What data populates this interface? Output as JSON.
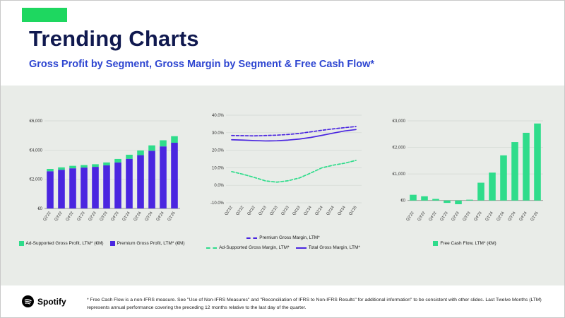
{
  "header": {
    "title": "Trending Charts",
    "subtitle": "Gross Profit by Segment, Gross Margin by Segment & Free Cash Flow*"
  },
  "colors": {
    "accent_green": "#1ed760",
    "chart_green": "#2fdc8b",
    "chart_purple": "#4a26e0",
    "title_navy": "#10194f",
    "subtitle_blue": "#2e46d1",
    "band_background": "#e9ece8"
  },
  "footer": {
    "brand": "Spotify",
    "disclaimer": "* Free Cash Flow is a non-IFRS measure. See \"Use of Non-IFRS Measures\" and \"Reconciliation of IFRS to Non-IFRS Results\" for additional information\" to be consistent with other slides. Last Twelve Months (LTM) represents annual performance covering the preceding 12 months relative to the last day of the quarter."
  },
  "chart_data": [
    {
      "type": "bar",
      "stacked": true,
      "categories": [
        "Q2'22",
        "Q3'22",
        "Q4'22",
        "Q1'23",
        "Q2'23",
        "Q3'23",
        "Q4'23",
        "Q1'24",
        "Q2'24",
        "Q3'24",
        "Q4'24",
        "Q1'25"
      ],
      "series": [
        {
          "name": "Premium Gross Profit, LTM* (€M)",
          "color": "#4a26e0",
          "values": [
            2550,
            2650,
            2750,
            2800,
            2850,
            2950,
            3150,
            3400,
            3650,
            3950,
            4250,
            4500
          ]
        },
        {
          "name": "Ad-Supported Gross Profit, LTM* (€M)",
          "color": "#2fdc8b",
          "values": [
            160,
            165,
            170,
            170,
            180,
            200,
            240,
            280,
            320,
            370,
            420,
            450
          ]
        }
      ],
      "ylim": [
        0,
        6000
      ],
      "yticks": [
        0,
        2000,
        4000,
        6000
      ],
      "ytick_labels": [
        "€0",
        "€2,000",
        "€4,000",
        "€6,000"
      ],
      "grid": true,
      "legend_position": "bottom"
    },
    {
      "type": "line",
      "categories": [
        "Q2'22",
        "Q3'22",
        "Q4'22",
        "Q1'23",
        "Q2'23",
        "Q3'23",
        "Q4'23",
        "Q1'24",
        "Q2'24",
        "Q3'24",
        "Q4'24",
        "Q1'25"
      ],
      "series": [
        {
          "name": "Premium Gross Margin, LTM*",
          "color": "#4a26e0",
          "dash": true,
          "values": [
            28.4,
            28.3,
            28.2,
            28.4,
            28.6,
            29.0,
            29.6,
            30.5,
            31.4,
            32.2,
            32.9,
            33.5
          ]
        },
        {
          "name": "Ad-Supported Gross Margin, LTM*",
          "color": "#2fdc8b",
          "dash": true,
          "values": [
            7.8,
            6.3,
            4.5,
            2.5,
            1.8,
            2.6,
            4.2,
            7.0,
            10.0,
            11.5,
            12.6,
            14.2
          ]
        },
        {
          "name": "Total Gross Margin, LTM*",
          "color": "#4a26e0",
          "dash": false,
          "values": [
            26.0,
            25.8,
            25.5,
            25.3,
            25.4,
            25.8,
            26.4,
            27.3,
            28.5,
            29.8,
            31.0,
            31.8
          ]
        }
      ],
      "ylim": [
        -10,
        40
      ],
      "yticks": [
        -10,
        0,
        10,
        20,
        30,
        40
      ],
      "ytick_labels": [
        "-10.0%",
        "0.0%",
        "10.0%",
        "20.0%",
        "30.0%",
        "40.0%"
      ],
      "grid": true,
      "legend_position": "bottom"
    },
    {
      "type": "bar",
      "stacked": false,
      "categories": [
        "Q2'22",
        "Q3'22",
        "Q4'22",
        "Q1'23",
        "Q2'23",
        "Q3'23",
        "Q4'23",
        "Q1'24",
        "Q2'24",
        "Q3'24",
        "Q4'24",
        "Q1'25"
      ],
      "series": [
        {
          "name": "Free Cash Flow, LTM* (€M)",
          "color": "#2fdc8b",
          "values": [
            215,
            160,
            60,
            -90,
            -140,
            30,
            670,
            1050,
            1700,
            2200,
            2550,
            2900
          ]
        }
      ],
      "ylim": [
        -300,
        3000
      ],
      "yticks": [
        0,
        1000,
        2000,
        3000
      ],
      "ytick_labels": [
        "€0",
        "€1,000",
        "€2,000",
        "€3,000"
      ],
      "grid": true,
      "legend_position": "bottom"
    }
  ]
}
